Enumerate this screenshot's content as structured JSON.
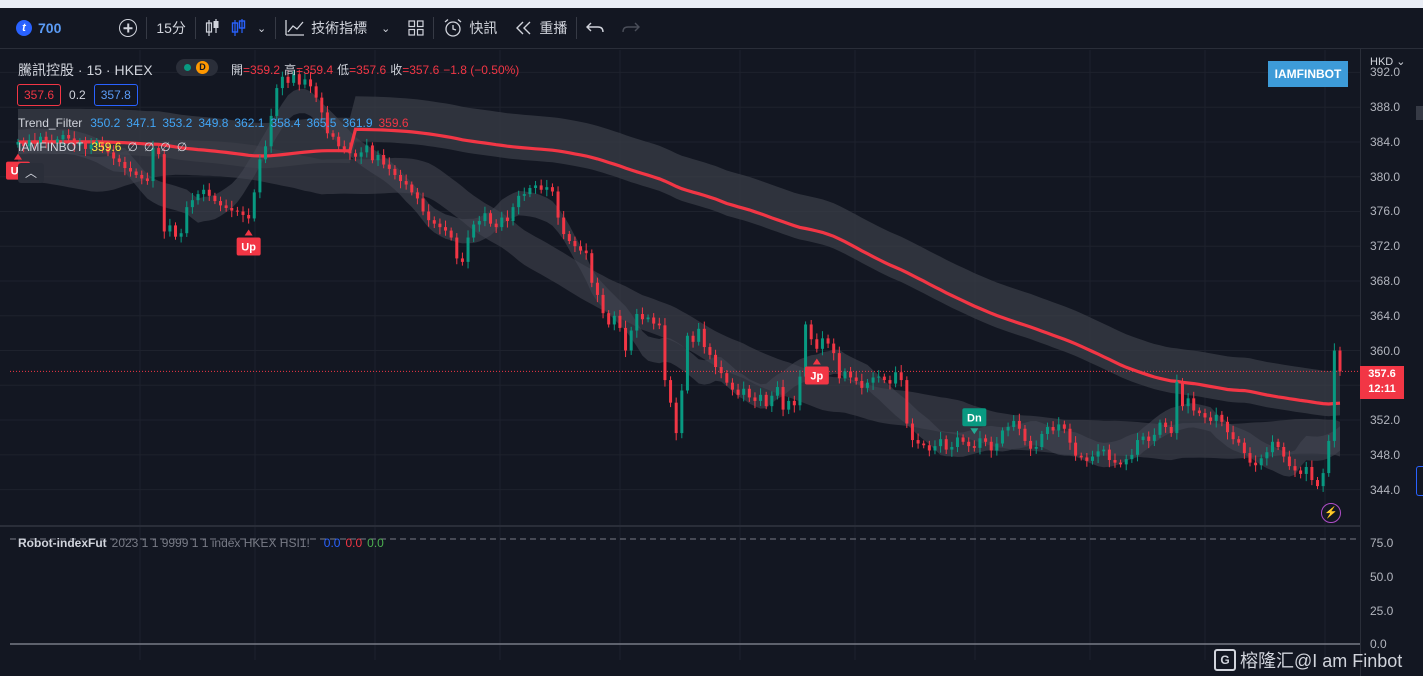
{
  "toolbar": {
    "symbol_icon": "t",
    "symbol": "700",
    "interval": "15分",
    "indicators_label": "技術指標",
    "alerts_label": "快訊",
    "replay_label": "重播"
  },
  "header": {
    "title": "騰訊控股 · 15 · HKEX",
    "delay_badge": "D",
    "ohlc": [
      {
        "label": "開",
        "value": "=359.2"
      },
      {
        "label": "高",
        "value": "=359.4"
      },
      {
        "label": "低",
        "value": "=357.6"
      },
      {
        "label": "收",
        "value": "=357.6"
      },
      {
        "label": "",
        "value": "−1.8 (−0.50%)"
      }
    ],
    "bid": "357.6",
    "spread": "0.2",
    "ask": "357.8"
  },
  "indicators": [
    {
      "name": "Trend_Filter",
      "values": [
        "350.2",
        "347.1",
        "353.2",
        "349.8",
        "362.1",
        "358.4",
        "365.5",
        "361.9",
        "359.6"
      ],
      "colors": [
        "#42a5f5",
        "#42a5f5",
        "#42a5f5",
        "#42a5f5",
        "#42a5f5",
        "#42a5f5",
        "#42a5f5",
        "#42a5f5",
        "#f23645"
      ]
    },
    {
      "name": "IAMFINBOT",
      "values": [
        "359.6",
        "∅",
        "∅",
        "∅",
        "∅"
      ],
      "colors": [
        "#ffeb3b",
        "#d1d4dc",
        "#d1d4dc",
        "#d1d4dc",
        "#d1d4dc"
      ]
    }
  ],
  "brand_badge": "IAMFINBOT",
  "currency": "HKD",
  "last_price": {
    "price": "357.6",
    "countdown": "12:11"
  },
  "sub_pane": {
    "name": "Robot-indexFut",
    "params": "2023 1 1 9999 1 1 index HKEX HSI1!",
    "values": [
      {
        "v": "0.0",
        "color": "#2962ff"
      },
      {
        "v": "0.0",
        "color": "#f23645"
      },
      {
        "v": "0.0",
        "color": "#4caf50"
      }
    ]
  },
  "watermark": "榕隆汇@I am Finbot",
  "watermark_icon": "G",
  "colors": {
    "up": "#089981",
    "down": "#f23645",
    "ma": "#f23645",
    "band": "#3a3d47"
  },
  "chart_data": {
    "type": "candlestick",
    "symbol": "騰訊控股",
    "exchange": "HKEX",
    "interval": "15",
    "y_ticks": [
      344.0,
      348.0,
      352.0,
      356.0,
      360.0,
      364.0,
      368.0,
      372.0,
      376.0,
      380.0,
      384.0,
      388.0,
      392.0
    ],
    "ylim": [
      340.5,
      393.2
    ],
    "closes": [
      384.0,
      383.5,
      384.2,
      383.8,
      384.6,
      384.1,
      383.9,
      384.3,
      384.8,
      384.4,
      383.6,
      384.0,
      383.2,
      383.7,
      384.1,
      383.4,
      382.8,
      382.1,
      381.7,
      381.0,
      380.6,
      380.2,
      379.8,
      379.5,
      383.3,
      382.6,
      373.7,
      374.4,
      373.1,
      373.5,
      376.5,
      377.3,
      378.0,
      378.5,
      377.8,
      377.2,
      376.7,
      376.4,
      376.1,
      376.0,
      375.6,
      375.2,
      378.2,
      382.0,
      383.5,
      387.0,
      390.2,
      391.5,
      390.8,
      391.8,
      390.6,
      391.2,
      390.4,
      389.1,
      387.4,
      385.0,
      384.6,
      383.5,
      383.1,
      382.7,
      382.3,
      382.8,
      383.6,
      381.9,
      382.5,
      381.4,
      380.9,
      380.2,
      379.5,
      379.1,
      378.2,
      377.5,
      376.0,
      375.0,
      374.6,
      374.2,
      373.8,
      373.0,
      370.6,
      370.2,
      373.0,
      374.5,
      374.9,
      375.8,
      374.6,
      374.2,
      375.3,
      374.9,
      376.5,
      377.8,
      378.0,
      378.7,
      379.0,
      378.5,
      378.8,
      378.3,
      375.3,
      373.4,
      372.6,
      372.0,
      371.5,
      371.2,
      367.8,
      366.4,
      364.3,
      363.0,
      364.0,
      362.6,
      360.0,
      362.3,
      364.2,
      363.6,
      363.8,
      363.1,
      362.9,
      356.6,
      354.0,
      350.5,
      355.4,
      361.7,
      361.0,
      362.5,
      360.4,
      359.5,
      358.1,
      357.4,
      356.3,
      355.5,
      354.9,
      355.6,
      354.6,
      354.2,
      354.9,
      353.6,
      354.8,
      355.8,
      353.2,
      354.2,
      353.7,
      357.0,
      363.0,
      361.3,
      360.2,
      361.4,
      360.8,
      359.7,
      356.8,
      357.6,
      356.9,
      356.5,
      355.7,
      356.3,
      356.9,
      357.0,
      356.6,
      356.2,
      357.5,
      356.6,
      351.6,
      349.7,
      349.3,
      349.1,
      348.5,
      349.0,
      349.8,
      348.6,
      348.9,
      350.0,
      349.5,
      349.0,
      348.8,
      349.9,
      349.5,
      348.5,
      349.3,
      350.8,
      351.2,
      351.9,
      351.0,
      349.6,
      348.7,
      348.9,
      350.4,
      351.2,
      350.8,
      351.5,
      351.0,
      349.4,
      347.9,
      347.7,
      347.3,
      347.8,
      348.4,
      348.6,
      347.4,
      347.1,
      346.9,
      347.5,
      348.0,
      349.7,
      350.1,
      349.6,
      350.3,
      351.7,
      351.2,
      350.5,
      356.4,
      353.6,
      354.5,
      353.1,
      352.8,
      352.3,
      351.9,
      352.6,
      351.8,
      350.6,
      349.8,
      349.4,
      348.2,
      347.1,
      346.8,
      347.6,
      348.3,
      349.5,
      348.9,
      347.8,
      346.7,
      346.2,
      345.8,
      346.6,
      345.1,
      344.4,
      345.9,
      349.6,
      360.0,
      357.6
    ]
  }
}
